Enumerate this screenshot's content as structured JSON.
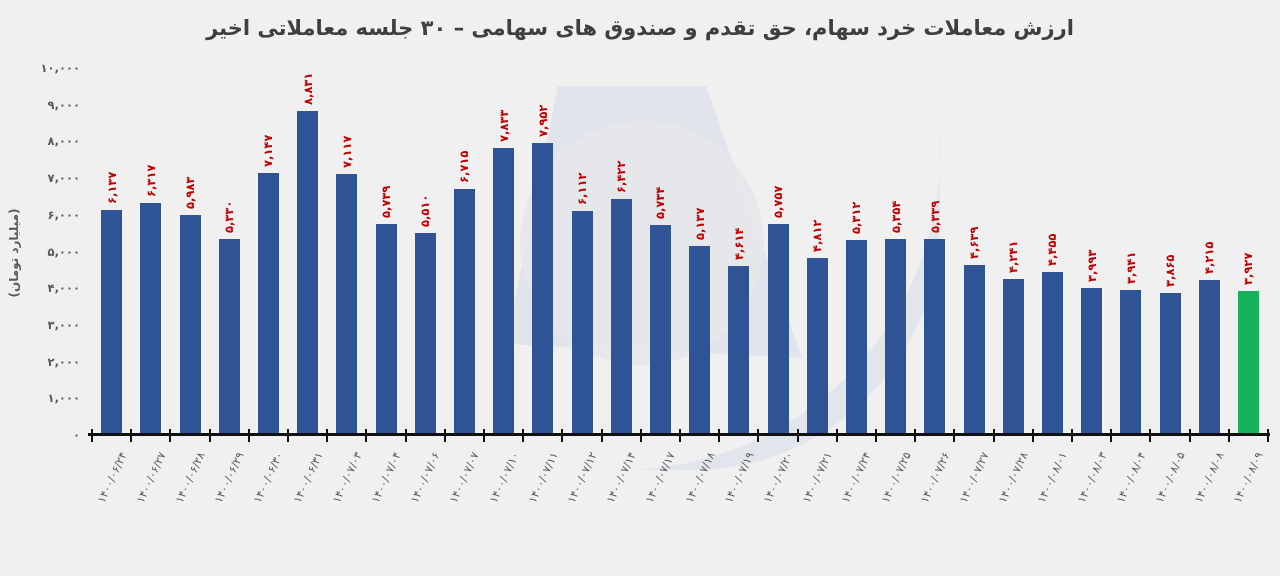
{
  "title": "ارزش معاملات خرد سهام، حق تقدم و صندوق های سهامی – ۳۰ جلسه معاملاتی اخیر",
  "y_axis": {
    "title": "(میلیارد تومان)",
    "tick_labels": [
      "۱۰,۰۰۰",
      "۹,۰۰۰",
      "۸,۰۰۰",
      "۷,۰۰۰",
      "۶,۰۰۰",
      "۵,۰۰۰",
      "۴,۰۰۰",
      "۳,۰۰۰",
      "۲,۰۰۰",
      "۱,۰۰۰",
      "۰"
    ],
    "tick_values": [
      10000,
      9000,
      8000,
      7000,
      6000,
      5000,
      4000,
      3000,
      2000,
      1000,
      0
    ]
  },
  "chart_data": {
    "type": "bar",
    "title": "ارزش معاملات خرد سهام، حق تقدم و صندوق های سهامی – ۳۰ جلسه معاملاتی اخیر",
    "xlabel": "",
    "ylabel": "میلیارد تومان",
    "ylim": [
      0,
      10000
    ],
    "grid": false,
    "legend": "none",
    "categories": [
      "۱۴۰۰/۰۶/۲۴",
      "۱۴۰۰/۰۶/۲۷",
      "۱۴۰۰/۰۶/۲۸",
      "۱۴۰۰/۰۶/۲۹",
      "۱۴۰۰/۰۶/۳۰",
      "۱۴۰۰/۰۶/۳۱",
      "۱۴۰۰/۰۷/۰۳",
      "۱۴۰۰/۰۷/۰۴",
      "۱۴۰۰/۰۷/۰۶",
      "۱۴۰۰/۰۷/۰۷",
      "۱۴۰۰/۰۷/۱۰",
      "۱۴۰۰/۰۷/۱۱",
      "۱۴۰۰/۰۷/۱۲",
      "۱۴۰۰/۰۷/۱۴",
      "۱۴۰۰/۰۷/۱۷",
      "۱۴۰۰/۰۷/۱۸",
      "۱۴۰۰/۰۷/۱۹",
      "۱۴۰۰/۰۷/۲۰",
      "۱۴۰۰/۰۷/۲۱",
      "۱۴۰۰/۰۷/۲۴",
      "۱۴۰۰/۰۷/۲۵",
      "۱۴۰۰/۰۷/۲۶",
      "۱۴۰۰/۰۷/۲۷",
      "۱۴۰۰/۰۷/۲۸",
      "۱۴۰۰/۰۸/۰۱",
      "۱۴۰۰/۰۸/۰۳",
      "۱۴۰۰/۰۸/۰۴",
      "۱۴۰۰/۰۸/۰۵",
      "۱۴۰۰/۰۸/۰۸",
      "۱۴۰۰/۰۸/۰۹"
    ],
    "values": [
      6137,
      6317,
      5983,
      5330,
      7147,
      8831,
      7117,
      5739,
      5510,
      6715,
      7833,
      7952,
      6112,
      6422,
      5734,
      5137,
      4614,
      5757,
      4812,
      5312,
      5354,
      5339,
      4639,
      4241,
      4455,
      3993,
      3941,
      3865,
      4215,
      3927
    ],
    "value_labels": [
      "۶,۱۳۷",
      "۶,۳۱۷",
      "۵,۹۸۳",
      "۵,۳۳۰",
      "۷,۱۴۷",
      "۸,۸۳۱",
      "۷,۱۱۷",
      "۵,۷۳۹",
      "۵,۵۱۰",
      "۶,۷۱۵",
      "۷,۸۳۳",
      "۷,۹۵۲",
      "۶,۱۱۲",
      "۶,۴۲۲",
      "۵,۷۳۴",
      "۵,۱۳۷",
      "۴,۶۱۴",
      "۵,۷۵۷",
      "۴,۸۱۲",
      "۵,۳۱۲",
      "۵,۳۵۴",
      "۵,۳۳۹",
      "۴,۶۳۹",
      "۴,۲۴۱",
      "۴,۴۵۵",
      "۳,۹۹۳",
      "۳,۹۴۱",
      "۳,۸۶۵",
      "۴,۲۱۵",
      "۳,۹۲۷"
    ],
    "last_bar_highlighted": true,
    "colors": {
      "bar": "#2f5496",
      "last_bar": "#16b25a",
      "value_label": "#c00000",
      "axis": "#111111",
      "tick_text": "#595959",
      "title_text": "#3f3f3f",
      "background": "#f0f0f1"
    }
  }
}
